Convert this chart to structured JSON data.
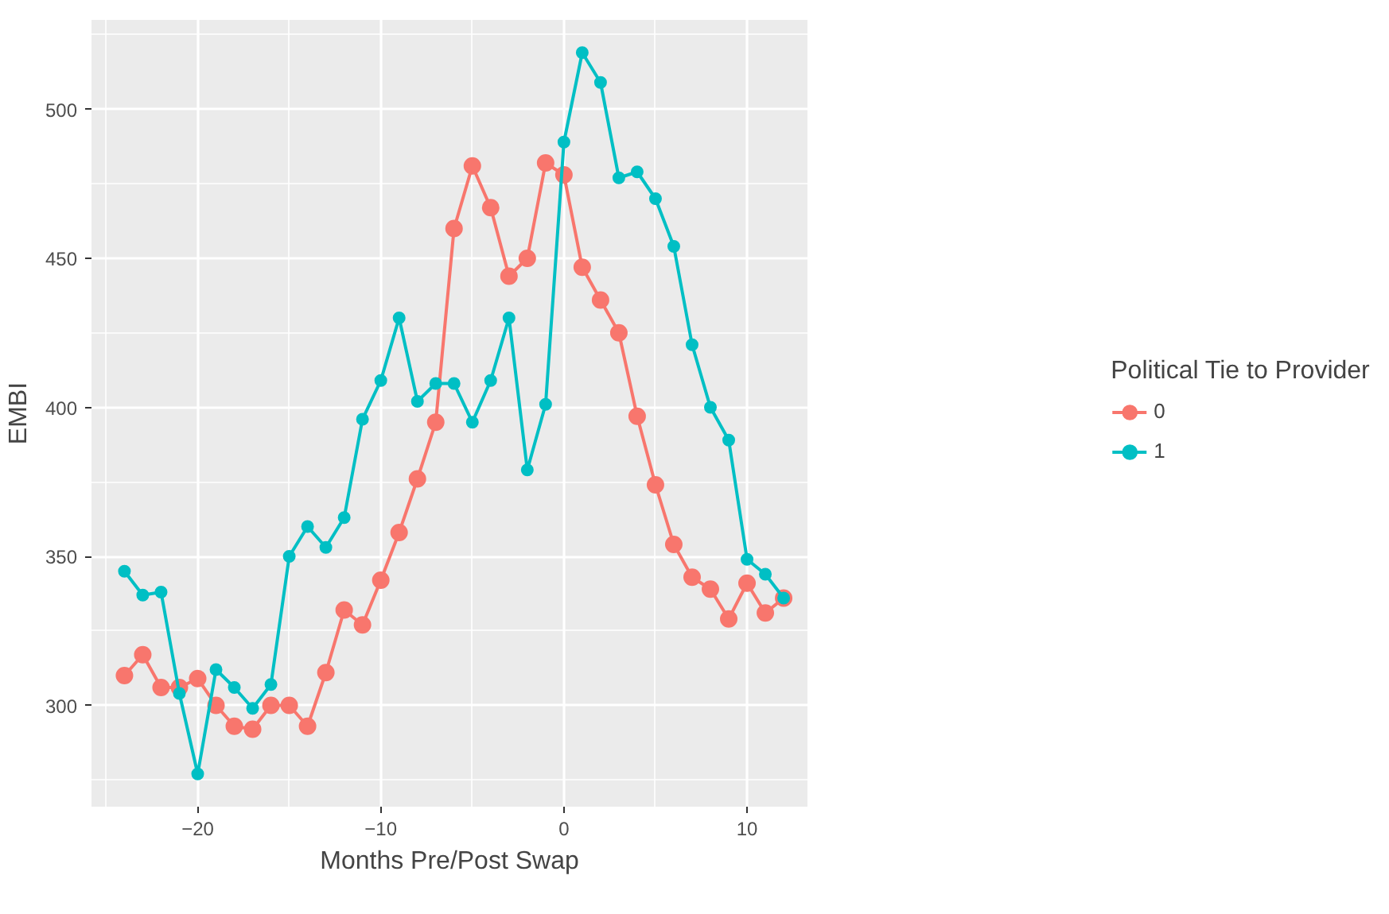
{
  "chart_data": {
    "type": "line",
    "xlabel": "Months Pre/Post Swap",
    "ylabel": "EMBI",
    "legend_title": "Political Tie to Provider",
    "x": [
      -24,
      -23,
      -22,
      -21,
      -20,
      -19,
      -18,
      -17,
      -16,
      -15,
      -14,
      -13,
      -12,
      -11,
      -10,
      -9,
      -8,
      -7,
      -6,
      -5,
      -4,
      -3,
      -2,
      -1,
      0,
      1,
      2,
      3,
      4,
      5,
      6,
      7,
      8,
      9,
      10,
      11,
      12
    ],
    "series": [
      {
        "name": "0",
        "color": "#f8766d",
        "values": [
          310,
          317,
          306,
          306,
          309,
          300,
          293,
          292,
          300,
          300,
          293,
          311,
          332,
          327,
          342,
          358,
          376,
          395,
          460,
          481,
          467,
          444,
          450,
          482,
          478,
          447,
          436,
          425,
          397,
          374,
          354,
          343,
          339,
          329,
          341,
          331,
          336
        ]
      },
      {
        "name": "1",
        "color": "#00bfc4",
        "values": [
          345,
          337,
          338,
          304,
          277,
          312,
          306,
          299,
          307,
          350,
          360,
          353,
          363,
          396,
          409,
          430,
          402,
          408,
          408,
          395,
          409,
          430,
          379,
          401,
          489,
          519,
          509,
          477,
          479,
          470,
          454,
          421,
          400,
          389,
          349,
          344,
          336
        ]
      }
    ],
    "xlim": [
      -25.8,
      13.3
    ],
    "ylim": [
      266,
      530
    ],
    "xticks": [
      -20,
      -10,
      0,
      10
    ],
    "yticks": [
      300,
      350,
      400,
      450,
      500
    ],
    "grid": true,
    "legend": "right",
    "marker": "circle",
    "line_style": "solid"
  }
}
